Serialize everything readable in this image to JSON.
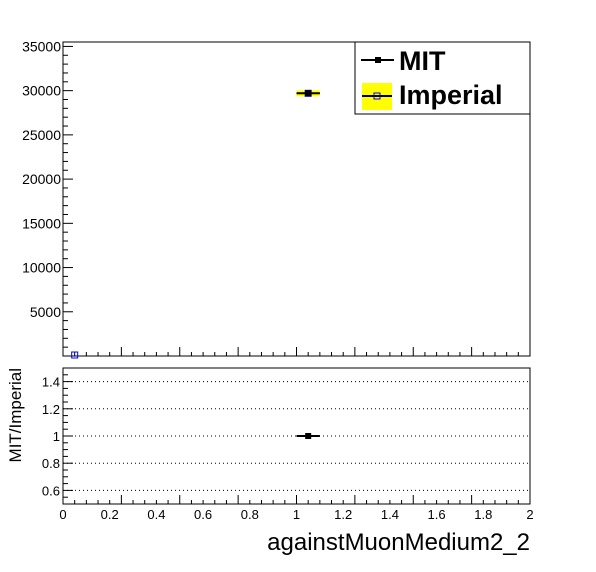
{
  "chart_data": [
    {
      "type": "scatter",
      "title": "",
      "xlabel": "againstMuonMedium2_2",
      "ylabel": "",
      "xlim": [
        0,
        2
      ],
      "ylim": [
        0,
        35500
      ],
      "y_ticks": [
        5000,
        10000,
        15000,
        20000,
        25000,
        30000,
        35000
      ],
      "y_tick_labels": [
        "5000",
        "10000",
        "15000",
        "20000",
        "25000",
        "30000",
        "35000"
      ],
      "grid": false,
      "legend_position": "top-right",
      "series": [
        {
          "name": "MIT",
          "color": "#000000",
          "marker": "filled-square",
          "points": [
            {
              "x": 1.05,
              "y": 29700,
              "xerr": 0.05
            }
          ]
        },
        {
          "name": "Imperial",
          "color": "#0000ff",
          "fill": "#ffff00",
          "marker": "open-square",
          "points": [
            {
              "x": 0.05,
              "y": 0,
              "xerr": 0.05
            },
            {
              "x": 1.05,
              "y": 29700,
              "xerr": 0.05
            }
          ]
        }
      ]
    },
    {
      "type": "scatter",
      "title": "",
      "xlabel": "againstMuonMedium2_2",
      "ylabel": "MIT/Imperial",
      "xlim": [
        0,
        2
      ],
      "ylim": [
        0.5,
        1.5
      ],
      "x_ticks": [
        0,
        0.2,
        0.4,
        0.6,
        0.8,
        1,
        1.2,
        1.4,
        1.6,
        1.8,
        2
      ],
      "x_tick_labels": [
        "0",
        "0.2",
        "0.4",
        "0.6",
        "0.8",
        "1",
        "1.2",
        "1.4",
        "1.6",
        "1.8",
        "2"
      ],
      "y_ticks": [
        0.6,
        0.8,
        1,
        1.2,
        1.4
      ],
      "y_tick_labels": [
        "0.6",
        "0.8",
        "1",
        "1.2",
        "1.4"
      ],
      "grid": "horizontal dotted",
      "series": [
        {
          "name": "MIT/Imperial",
          "color": "#000000",
          "marker": "filled-square",
          "points": [
            {
              "x": 1.05,
              "y": 1.0,
              "xerr": 0.05
            }
          ]
        }
      ]
    }
  ]
}
